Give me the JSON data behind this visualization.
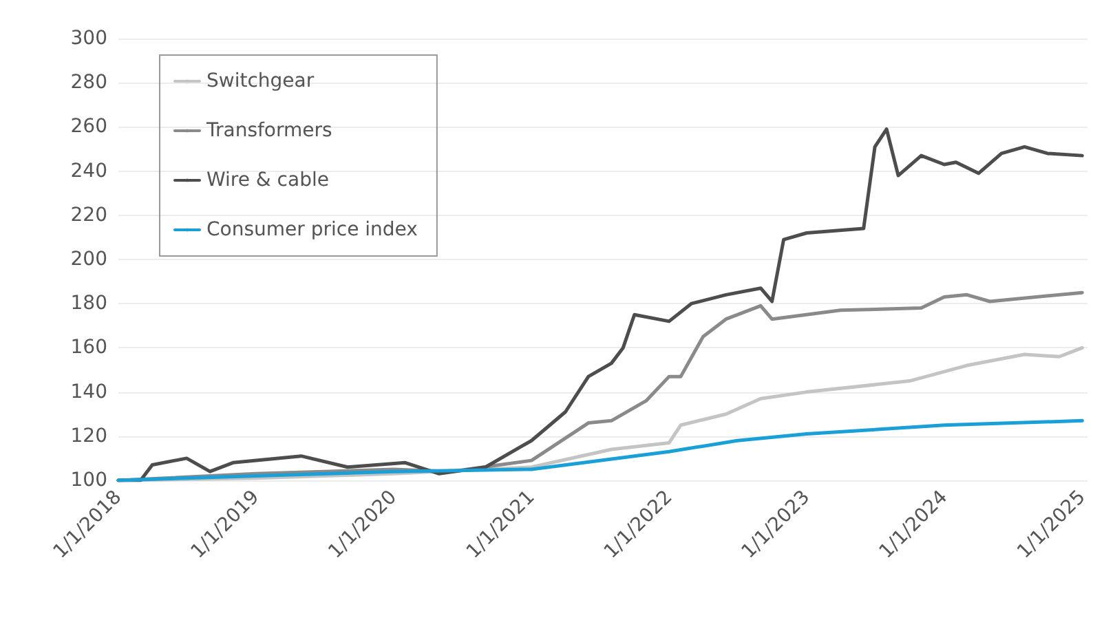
{
  "chart_data": {
    "type": "line",
    "xlim": [
      "2018-01-01",
      "2025-01-15"
    ],
    "ylim": [
      100,
      300
    ],
    "xticks": [
      {
        "value": "2018-01-01",
        "label": "1/1/2018"
      },
      {
        "value": "2019-01-01",
        "label": "1/1/2019"
      },
      {
        "value": "2020-01-01",
        "label": "1/1/2020"
      },
      {
        "value": "2021-01-01",
        "label": "1/1/2021"
      },
      {
        "value": "2022-01-01",
        "label": "1/1/2022"
      },
      {
        "value": "2023-01-01",
        "label": "1/1/2023"
      },
      {
        "value": "2024-01-01",
        "label": "1/1/2024"
      },
      {
        "value": "2025-01-01",
        "label": "1/1/2025"
      }
    ],
    "yticks": [
      100,
      120,
      140,
      160,
      180,
      200,
      220,
      240,
      260,
      280,
      300
    ],
    "grid": "y",
    "legend": "top left",
    "marker": "none",
    "line_style": "solid",
    "series": [
      {
        "name": "Switchgear",
        "color": "#c4c4c4",
        "x": [
          "2018-01",
          "2019-01",
          "2020-01",
          "2021-01",
          "2021-08",
          "2022-01",
          "2022-02",
          "2022-06",
          "2022-09",
          "2023-01",
          "2023-10",
          "2024-03",
          "2024-08",
          "2024-11",
          "2025-01"
        ],
        "values": [
          100,
          101,
          103,
          106,
          114,
          117,
          125,
          130,
          137,
          140,
          145,
          152,
          157,
          156,
          160
        ]
      },
      {
        "name": "Transformers",
        "color": "#8a8a8a",
        "x": [
          "2018-01",
          "2019-01",
          "2020-01",
          "2020-06",
          "2021-01",
          "2021-06",
          "2021-08",
          "2021-11",
          "2022-01",
          "2022-02",
          "2022-04",
          "2022-06",
          "2022-09",
          "2022-10",
          "2023-04",
          "2023-11",
          "2024-01",
          "2024-03",
          "2024-05",
          "2025-01"
        ],
        "values": [
          100,
          103,
          105,
          104,
          109,
          126,
          127,
          136,
          147,
          147,
          165,
          173,
          179,
          173,
          177,
          178,
          183,
          184,
          181,
          185
        ]
      },
      {
        "name": "Wire & cable",
        "color": "#4d4d4d",
        "x": [
          "2018-01",
          "2018-03",
          "2018-04",
          "2018-07",
          "2018-09",
          "2018-11",
          "2019-05",
          "2019-09",
          "2020-02",
          "2020-05",
          "2020-09",
          "2021-01",
          "2021-04",
          "2021-06",
          "2021-08",
          "2021-09",
          "2021-10",
          "2022-01",
          "2022-03",
          "2022-06",
          "2022-09",
          "2022-10",
          "2022-11",
          "2023-01",
          "2023-06",
          "2023-07",
          "2023-08",
          "2023-09",
          "2023-11",
          "2024-01",
          "2024-02",
          "2024-04",
          "2024-06",
          "2024-08",
          "2024-10",
          "2025-01"
        ],
        "values": [
          100,
          100,
          107,
          110,
          104,
          108,
          111,
          106,
          108,
          103,
          106,
          118,
          131,
          147,
          153,
          160,
          175,
          172,
          180,
          184,
          187,
          181,
          209,
          212,
          214,
          251,
          259,
          238,
          247,
          243,
          244,
          239,
          248,
          251,
          248,
          247
        ]
      },
      {
        "name": "Consumer price index",
        "color": "#1a9fd6",
        "x": [
          "2018-01",
          "2019-01",
          "2020-01",
          "2021-01",
          "2022-01",
          "2022-07",
          "2023-01",
          "2024-01",
          "2025-01"
        ],
        "values": [
          100,
          102,
          104,
          105,
          113,
          118,
          121,
          125,
          127
        ]
      }
    ]
  }
}
